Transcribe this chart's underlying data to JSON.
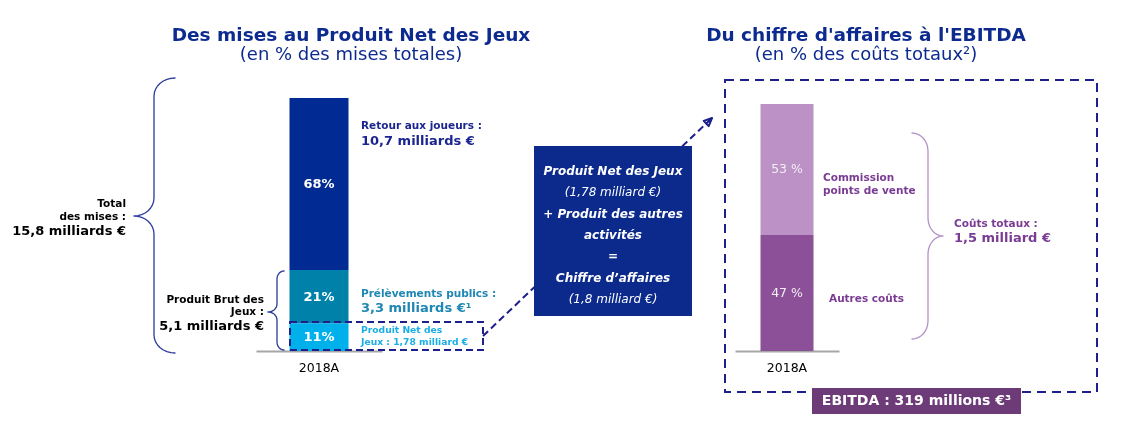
{
  "chart_data": [
    {
      "type": "bar",
      "title": "Des mises au Produit Net des Jeux",
      "subtitle": "(en % des mises totales)",
      "categories": [
        "2018A"
      ],
      "stacked": true,
      "tick_labels": "x",
      "series": [
        {
          "name": "Produit Net des\nJeux : 1,78 milliard €",
          "color": "#00b0eb",
          "values": [
            11
          ],
          "value_labels": [
            "11%"
          ]
        },
        {
          "name": "Prélèvements publics :",
          "color": "#0081a9",
          "values": [
            21
          ],
          "value_labels": [
            "21%"
          ]
        },
        {
          "name": "Retour aux joueurs :",
          "color": "#012b92",
          "values": [
            68
          ],
          "value_labels": [
            "68%"
          ]
        }
      ],
      "annotations": [
        "10,7 milliards €",
        "3,3 milliards €¹",
        "Total\ndes mises :",
        "15,8 milliards €",
        "Produit Brut des\nJeux :",
        "5,1 milliards €"
      ]
    },
    {
      "type": "other",
      "annotations": [
        "Produit Net des Jeux",
        "(1,78 milliard €)",
        "+ Produit des autres\nactivités",
        "=",
        "Chiffre d’affaires",
        "(1,8 milliard €)"
      ]
    },
    {
      "type": "bar",
      "title": "Du chiffre d'affaires à l'EBITDA",
      "subtitle": "(en % des coûts totaux²)",
      "categories": [
        "2018A"
      ],
      "stacked": true,
      "tick_labels": "x",
      "series": [
        {
          "name": "Autres coûts",
          "color": "#8b5097",
          "values": [
            47
          ],
          "value_labels": [
            "47 %"
          ]
        },
        {
          "name": "Commission\npoints de vente",
          "color": "#bb91c6",
          "values": [
            53
          ],
          "value_labels": [
            "53 %"
          ]
        }
      ],
      "annotations": [
        "Coûts totaux :",
        "1,5 milliard €",
        "EBITDA : 319 millions €³"
      ]
    }
  ]
}
